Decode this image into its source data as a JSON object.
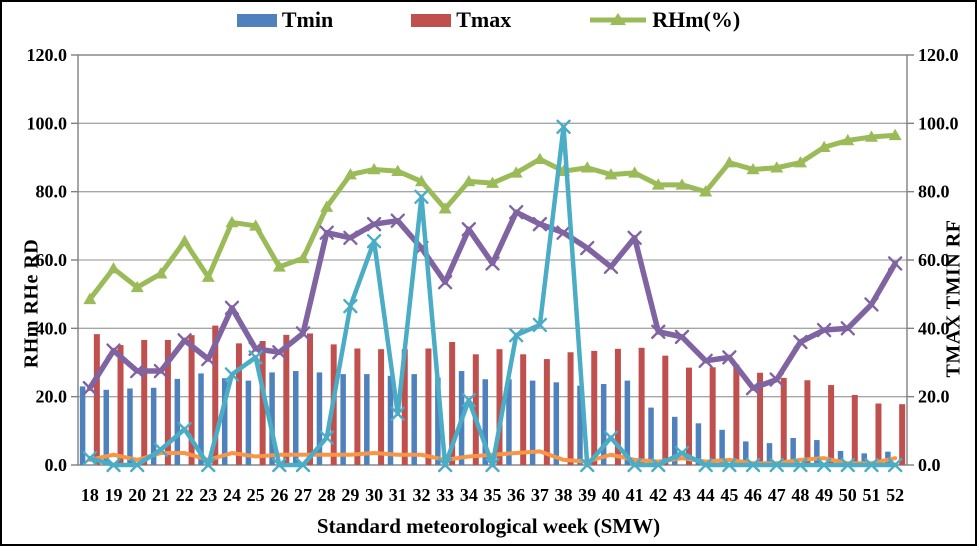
{
  "chart_data": {
    "type": "combo_bar_line",
    "xlabel": "Standard meteorological week (SMW)",
    "ylabel_left": "RHm RHe RD",
    "ylabel_right": "TMAX TMIN RF",
    "ylim": [
      0,
      120
    ],
    "y_tick_step": 20,
    "y_tick_labels": [
      "0.0",
      "20.0",
      "40.0",
      "60.0",
      "80.0",
      "100.0",
      "120.0"
    ],
    "grid": true,
    "grid_color": "#A6A6A6",
    "axis_color": "#808080",
    "legend_position": "top",
    "categories": [
      "18",
      "19",
      "20",
      "21",
      "22",
      "23",
      "24",
      "25",
      "26",
      "27",
      "28",
      "29",
      "30",
      "31",
      "32",
      "33",
      "34",
      "35",
      "36",
      "37",
      "38",
      "39",
      "40",
      "41",
      "42",
      "43",
      "44",
      "45",
      "46",
      "47",
      "48",
      "49",
      "50",
      "51",
      "52"
    ],
    "legend": [
      {
        "label": "Tmin",
        "series_index": 0
      },
      {
        "label": "Tmax",
        "series_index": 1
      },
      {
        "label": "RHm(%)",
        "series_index": 2
      }
    ],
    "series": [
      {
        "name": "Tmin",
        "type": "bar",
        "color": "#4F81BD",
        "in_legend": true,
        "values": [
          23,
          22,
          22.4,
          22.6,
          25.2,
          26.8,
          25.4,
          24.7,
          27.1,
          27.5,
          27.1,
          26.6,
          26.6,
          26.1,
          26.6,
          25.6,
          27.5,
          25.1,
          25.1,
          24.7,
          24.2,
          23.2,
          23.7,
          24.7,
          16.8,
          14.1,
          12.2,
          10.3,
          6.9,
          6.4,
          7.9,
          7.3,
          4.1,
          3.4,
          3.9
        ]
      },
      {
        "name": "Tmax",
        "type": "bar",
        "color": "#C0504D",
        "in_legend": true,
        "values": [
          38.3,
          35.1,
          36.6,
          36.6,
          38,
          40.8,
          35.6,
          36.3,
          38.1,
          38.5,
          35.3,
          34.1,
          33.9,
          33.9,
          34.1,
          36,
          32.4,
          33.9,
          32.4,
          31,
          33,
          33.4,
          34,
          34.3,
          32,
          28.5,
          28.6,
          29.4,
          27,
          25.5,
          24.8,
          23.4,
          20.5,
          18,
          17.8
        ]
      },
      {
        "name": "RHm(%)",
        "type": "line",
        "marker": "triangle",
        "color": "#9BBB59",
        "in_legend": true,
        "values": [
          48.5,
          57.5,
          52,
          56,
          65.5,
          55,
          71,
          70,
          58,
          60.5,
          75.5,
          85,
          86.5,
          86,
          83,
          75,
          83,
          82.5,
          85.5,
          89.5,
          86,
          87,
          85,
          85.5,
          82,
          82,
          80,
          88.5,
          86.5,
          87,
          88.5,
          93,
          95,
          96,
          96.5
        ]
      },
      {
        "name": "purple-x-line",
        "type": "line",
        "marker": "x",
        "color": "#8064A2",
        "in_legend": false,
        "values": [
          22.5,
          33.5,
          27.5,
          27.5,
          36.5,
          31,
          46,
          34,
          33,
          38.5,
          68,
          66.5,
          70.5,
          71.5,
          63.5,
          53.5,
          69,
          59,
          74,
          70.5,
          68,
          63.5,
          58,
          66.5,
          39,
          37.5,
          30.5,
          31.5,
          22.5,
          25,
          36,
          39.5,
          40,
          47,
          59
        ]
      },
      {
        "name": "orange-line",
        "type": "line",
        "marker": "none",
        "color": "#F79646",
        "in_legend": false,
        "values": [
          1.5,
          3,
          1.5,
          3.5,
          3.5,
          1.5,
          3.5,
          2.5,
          3,
          3,
          3,
          3,
          3.5,
          3,
          3,
          1.5,
          2.5,
          3,
          3.5,
          4,
          1.5,
          1,
          3,
          1.5,
          1,
          2,
          1,
          1.5,
          0.5,
          0.5,
          1.5,
          2,
          0.5,
          0.5,
          2
        ]
      },
      {
        "name": "teal-x-line",
        "type": "line",
        "marker": "x",
        "color": "#4BACC6",
        "in_legend": false,
        "values": [
          2,
          0,
          0,
          4.5,
          10.5,
          0,
          26.5,
          31.5,
          0,
          0,
          8,
          46.5,
          65.5,
          15,
          78.5,
          0,
          19,
          0,
          38,
          41,
          99,
          0,
          8,
          0,
          0,
          3.5,
          0,
          0,
          0,
          0,
          0,
          0,
          0,
          0,
          0
        ]
      }
    ]
  }
}
